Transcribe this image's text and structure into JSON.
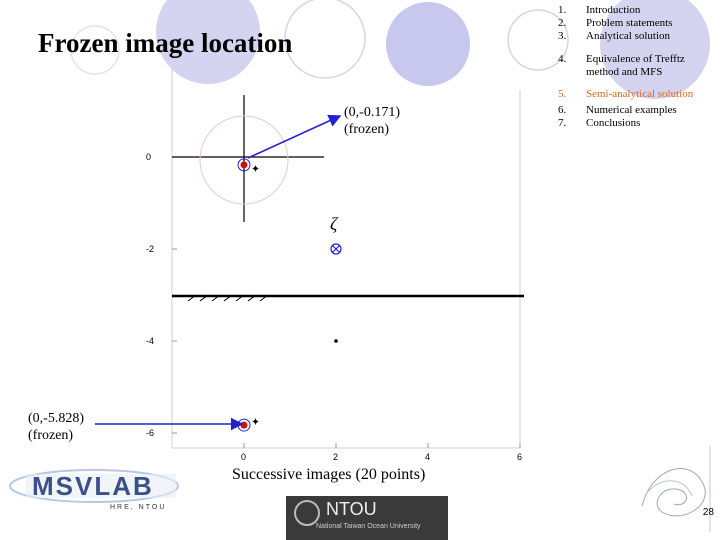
{
  "slide": {
    "title": "Frozen image location",
    "page_number": "28",
    "caption": "Successive images (20 points)"
  },
  "outline": {
    "items": [
      {
        "num": "1.",
        "label": "Introduction"
      },
      {
        "num": "2.",
        "label": "Problem statements"
      },
      {
        "num": "3.",
        "label": "Analytical solution"
      },
      {
        "num": "4.",
        "label": "Equivalence of Trefftz"
      },
      {
        "num": "",
        "label": "method and MFS"
      },
      {
        "num": "5.",
        "label": "Semi-analytical solution",
        "active": true
      },
      {
        "num": "6.",
        "label": "Numerical examples"
      },
      {
        "num": "7.",
        "label": "Conclusions"
      }
    ]
  },
  "annotations": {
    "upper_coord": "(0,-0.171)",
    "upper_state": "(frozen)",
    "lower_coord": "(0,-5.828)",
    "lower_state": "(frozen)",
    "zeta": "ζ"
  },
  "chart_data": {
    "type": "scatter",
    "x_ticks": [
      "0",
      "2",
      "4",
      "6"
    ],
    "y_ticks": [
      "0",
      "-2",
      "-4",
      "-6"
    ],
    "xlim": [
      -2,
      6
    ],
    "ylim": [
      -6.5,
      1.5
    ],
    "source_point": {
      "x": 2,
      "y": -2
    },
    "frozen_images": [
      {
        "x": 0,
        "y": -0.171
      },
      {
        "x": 0,
        "y": -5.828
      }
    ],
    "image_points": [
      {
        "x": 0.25,
        "y": -0.25
      },
      {
        "x": 0.25,
        "y": -5.75
      },
      {
        "x": 2,
        "y": -4
      }
    ],
    "boundary_y": -3
  },
  "logos": {
    "lab": "MSVLAB",
    "lab_sub": "HRE, NTOU",
    "university": "NTOU",
    "university_sub": "National Taiwan Ocean University"
  },
  "colors": {
    "accent_orange": "#d2691e",
    "arrow_blue": "#2222cc",
    "frozen_red": "#cc1111",
    "bubble_lavender": "#c8c8ee"
  }
}
